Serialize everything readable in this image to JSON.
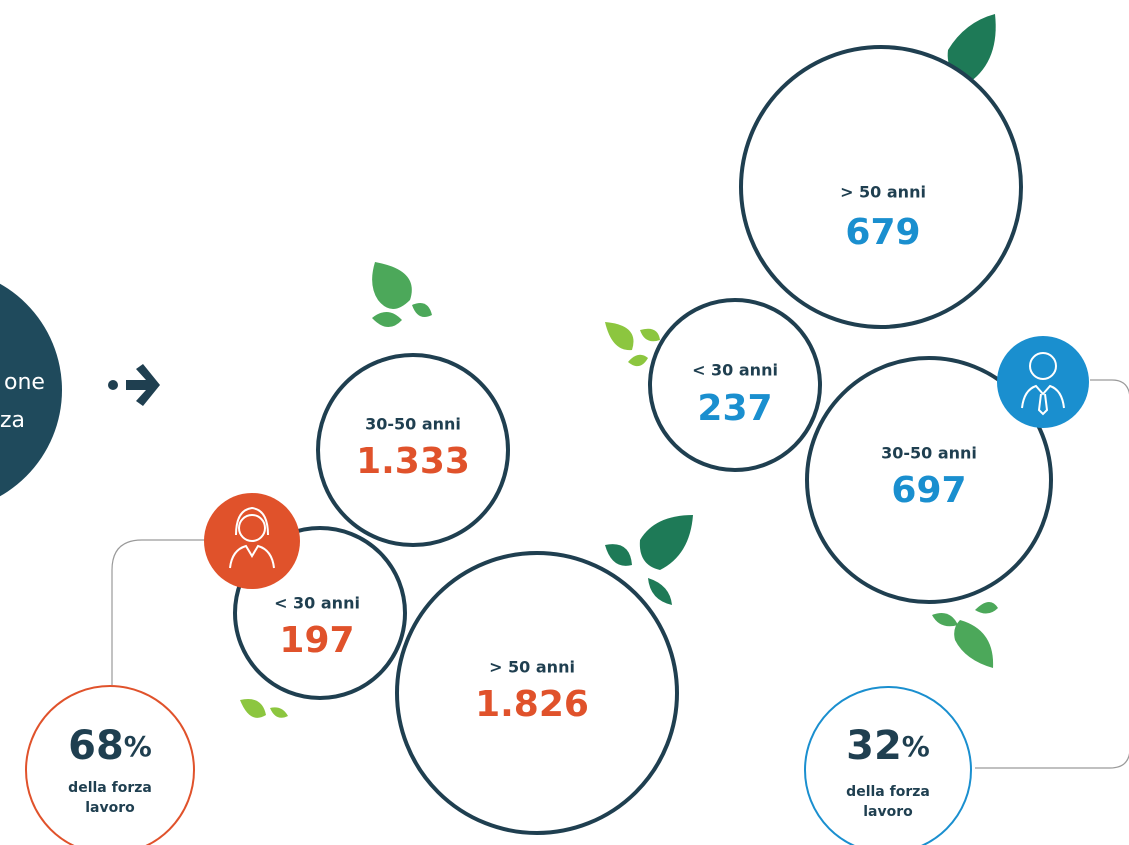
{
  "intro": {
    "lines": [
      "one",
      "za"
    ]
  },
  "women": {
    "share": {
      "value": "68",
      "unit": "%",
      "caption_lines": [
        "della forza",
        "lavoro"
      ]
    },
    "groups": [
      {
        "label": "30-50 anni",
        "value": "1.333"
      },
      {
        "label": "< 30 anni",
        "value": "197"
      },
      {
        "label": "> 50 anni",
        "value": "1.826"
      }
    ]
  },
  "men": {
    "share": {
      "value": "32",
      "unit": "%",
      "caption_lines": [
        "della forza",
        "lavoro"
      ]
    },
    "groups": [
      {
        "label": "> 50 anni",
        "value": "679"
      },
      {
        "label": "< 30 anni",
        "value": "237"
      },
      {
        "label": "30-50 anni",
        "value": "697"
      }
    ]
  }
}
